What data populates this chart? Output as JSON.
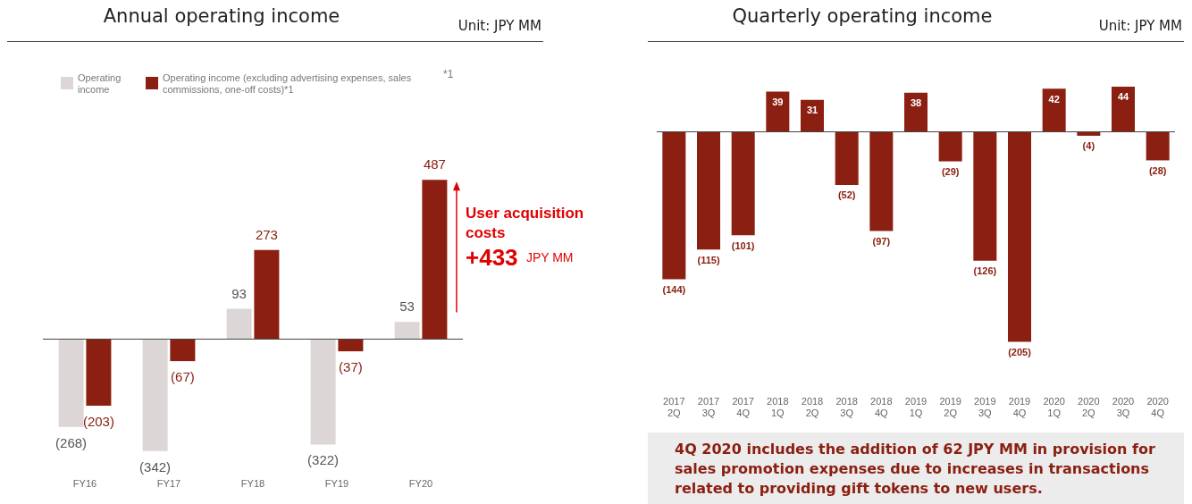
{
  "chart_data": [
    {
      "type": "bar",
      "title": "Annual operating income",
      "subtitle": "Unit: JPY MM",
      "categories": [
        "FY16",
        "FY17",
        "FY18",
        "FY19",
        "FY20"
      ],
      "legend": "top left",
      "series": [
        {
          "name": "Operating income",
          "color": "#dcd6d6",
          "values": [
            -268,
            -342,
            93,
            -322,
            53
          ],
          "value_labels": [
            "(268)",
            "(342)",
            "93",
            "(322)",
            "53"
          ]
        },
        {
          "name": "Operating income (excluding advertising expenses, sales commissions, one-off costs)*1",
          "color": "#8b2012",
          "values": [
            -203,
            -67,
            273,
            -37,
            487
          ],
          "value_labels": [
            "(203)",
            "(67)",
            "273",
            "(37)",
            "487"
          ]
        }
      ],
      "annotations": [
        "*1",
        "User acquisition costs",
        "+433 JPY MM"
      ]
    },
    {
      "type": "bar",
      "title": "Quarterly operating income",
      "subtitle": "Unit: JPY MM",
      "categories": [
        "2017\n2Q",
        "2017\n3Q",
        "2017\n4Q",
        "2018\n1Q",
        "2018\n2Q",
        "2018\n3Q",
        "2018\n4Q",
        "2019\n1Q",
        "2019\n2Q",
        "2019\n3Q",
        "2019\n4Q",
        "2020\n1Q",
        "2020\n2Q",
        "2020\n3Q",
        "2020\n4Q"
      ],
      "series": [
        {
          "color": "#8b2012",
          "values": [
            -144,
            -115,
            -101,
            39,
            31,
            -52,
            -97,
            38,
            -29,
            -126,
            -205,
            42,
            -4,
            44,
            -28
          ],
          "value_labels": [
            "(144)",
            "(115)",
            "(101)",
            "39",
            "31",
            "(52)",
            "(97)",
            "38",
            "(29)",
            "(126)",
            "(205)",
            "42",
            "(4)",
            "44",
            "(28)"
          ]
        }
      ],
      "annotations": [
        "4Q 2020 includes the addition of 62 JPY MM in provision for sales promotion expenses due to increases in transactions related to providing gift tokens to new users."
      ]
    }
  ]
}
